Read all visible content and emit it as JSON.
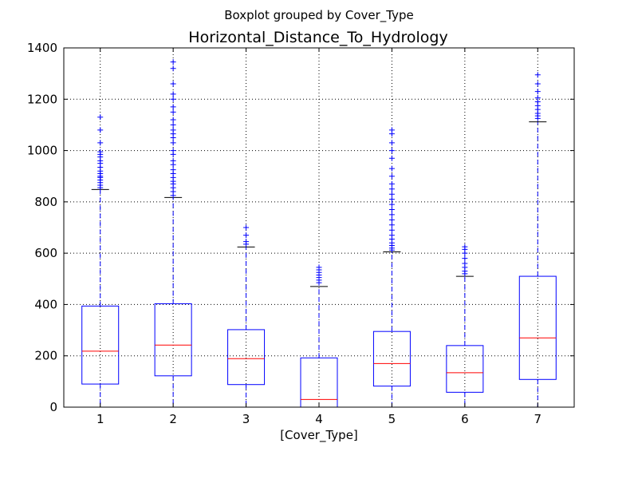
{
  "suptitle": "Boxplot grouped by Cover_Type",
  "chart_data": {
    "type": "boxplot",
    "title": "Horizontal_Distance_To_Hydrology",
    "xlabel": "[Cover_Type]",
    "ylabel": "",
    "ylim": [
      0,
      1400
    ],
    "yticks": [
      0,
      200,
      400,
      600,
      800,
      1000,
      1200,
      1400
    ],
    "grid": true,
    "categories": [
      "1",
      "2",
      "3",
      "4",
      "5",
      "6",
      "7"
    ],
    "boxes": [
      {
        "category": "1",
        "whisker_low": 0,
        "q1": 90,
        "median": 218,
        "q3": 394,
        "whisker_high": 848,
        "outliers": [
          855,
          865,
          875,
          885,
          895,
          900,
          910,
          920,
          935,
          950,
          960,
          975,
          985,
          995,
          1030,
          1080,
          1130
        ]
      },
      {
        "category": "2",
        "whisker_low": 0,
        "q1": 122,
        "median": 242,
        "q3": 403,
        "whisker_high": 817,
        "outliers": [
          825,
          840,
          855,
          870,
          880,
          895,
          910,
          925,
          945,
          960,
          985,
          1000,
          1030,
          1050,
          1065,
          1080,
          1100,
          1120,
          1150,
          1170,
          1200,
          1220,
          1260,
          1320,
          1345
        ]
      },
      {
        "category": "3",
        "whisker_low": 0,
        "q1": 88,
        "median": 189,
        "q3": 302,
        "whisker_high": 624,
        "outliers": [
          635,
          645,
          670,
          700
        ]
      },
      {
        "category": "4",
        "whisker_low": 0,
        "q1": 0,
        "median": 30,
        "q3": 192,
        "whisker_high": 470,
        "outliers": [
          485,
          495,
          505,
          515,
          525,
          535,
          545
        ]
      },
      {
        "category": "5",
        "whisker_low": 0,
        "q1": 82,
        "median": 170,
        "q3": 295,
        "whisker_high": 605,
        "outliers": [
          612,
          620,
          630,
          640,
          655,
          670,
          690,
          710,
          730,
          750,
          770,
          790,
          810,
          830,
          850,
          870,
          900,
          930,
          970,
          1000,
          1030,
          1065,
          1080
        ]
      },
      {
        "category": "6",
        "whisker_low": 0,
        "q1": 58,
        "median": 134,
        "q3": 240,
        "whisker_high": 510,
        "outliers": [
          520,
          530,
          545,
          560,
          580,
          600,
          615,
          625
        ]
      },
      {
        "category": "7",
        "whisker_low": 0,
        "q1": 108,
        "median": 270,
        "q3": 510,
        "whisker_high": 1112,
        "outliers": [
          1125,
          1135,
          1145,
          1160,
          1175,
          1190,
          1205,
          1230,
          1260,
          1295
        ]
      }
    ],
    "colors": {
      "box": "#0000ff",
      "median": "#ff0000",
      "whisker_cap": "#000000",
      "outlier": "#0000ff",
      "grid": "#000000"
    }
  }
}
